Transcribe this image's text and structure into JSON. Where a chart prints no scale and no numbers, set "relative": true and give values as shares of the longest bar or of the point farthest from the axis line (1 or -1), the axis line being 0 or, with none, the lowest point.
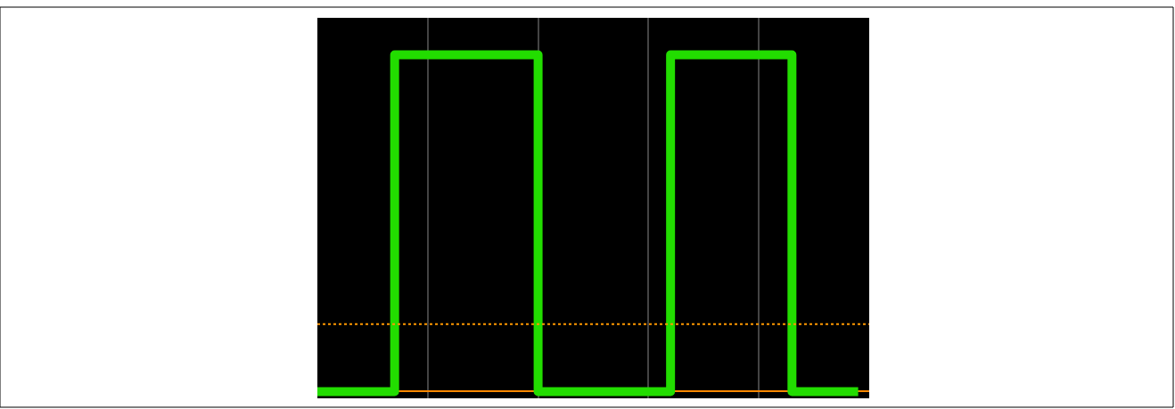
{
  "chart_data": {
    "type": "step",
    "relative": true,
    "grid": "x",
    "marker": "none",
    "line_style": "solid",
    "categories": [
      null,
      null,
      null,
      null,
      null,
      null,
      null,
      null,
      null,
      null,
      null,
      null,
      null,
      null,
      null,
      null,
      null,
      null,
      null,
      null,
      null,
      null,
      null,
      null,
      null,
      null,
      null,
      null,
      null,
      null,
      null,
      null,
      null,
      null,
      null,
      null,
      null,
      null,
      null,
      null,
      null,
      null,
      null,
      null,
      null,
      null,
      null,
      null,
      null,
      null
    ],
    "series": [
      {
        "color": "#22dd00",
        "values": [
          0,
          0,
          0,
          0,
          0,
          0,
          0,
          1,
          1,
          1,
          1,
          1,
          1,
          1,
          1,
          1,
          1,
          1,
          1,
          1,
          0,
          0,
          0,
          0,
          0,
          0,
          0,
          0,
          0,
          0,
          0,
          0,
          1,
          1,
          1,
          1,
          1,
          1,
          1,
          1,
          1,
          1,
          1,
          0,
          0,
          0,
          0,
          0,
          0,
          0
        ]
      }
    ],
    "ref_lines": [
      {
        "axis": "y",
        "value": 0.2,
        "label": null,
        "color": "#ff9900",
        "line_style": "dotted"
      }
    ]
  }
}
